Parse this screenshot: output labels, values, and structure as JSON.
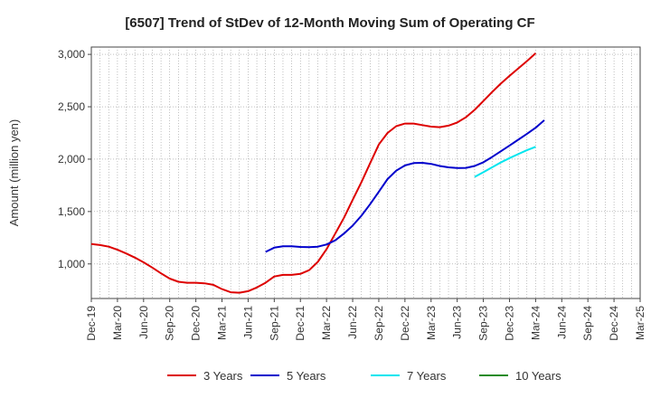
{
  "chart_data": {
    "type": "line",
    "title": "[6507]  Trend of StDev of 12-Month Moving Sum of Operating CF",
    "ylabel": "Amount (million yen)",
    "xlabel": "",
    "ylim": [
      670,
      3070
    ],
    "yticks": [
      1000,
      1500,
      2000,
      2500,
      3000
    ],
    "ytick_labels": [
      "1,000",
      "1,500",
      "2,000",
      "2,500",
      "3,000"
    ],
    "x_start": "2019-12",
    "x_end": "2025-03",
    "xtick_labels": [
      "Dec-19",
      "Mar-20",
      "Jun-20",
      "Sep-20",
      "Dec-20",
      "Mar-21",
      "Jun-21",
      "Sep-21",
      "Dec-21",
      "Mar-22",
      "Jun-22",
      "Sep-22",
      "Dec-22",
      "Mar-23",
      "Jun-23",
      "Sep-23",
      "Dec-23",
      "Mar-24",
      "Jun-24",
      "Sep-24",
      "Dec-24",
      "Mar-25"
    ],
    "grid": true,
    "legend_position": "bottom",
    "series": [
      {
        "name": "3 Years",
        "color": "#dd0000",
        "start": "2019-12",
        "values": [
          1190,
          1180,
          1165,
          1135,
          1100,
          1060,
          1015,
          965,
          910,
          860,
          830,
          820,
          820,
          815,
          800,
          760,
          730,
          725,
          740,
          775,
          820,
          880,
          895,
          895,
          905,
          940,
          1020,
          1140,
          1290,
          1440,
          1610,
          1780,
          1960,
          2140,
          2250,
          2315,
          2340,
          2340,
          2325,
          2310,
          2305,
          2320,
          2350,
          2400,
          2470,
          2555,
          2640,
          2720,
          2795,
          2865,
          2935,
          3010
        ]
      },
      {
        "name": "5 Years",
        "color": "#0000cc",
        "start": "2021-08",
        "values": [
          1115,
          1155,
          1168,
          1168,
          1162,
          1160,
          1165,
          1185,
          1225,
          1290,
          1365,
          1460,
          1570,
          1690,
          1810,
          1890,
          1940,
          1962,
          1965,
          1955,
          1935,
          1922,
          1915,
          1917,
          1935,
          1970,
          2020,
          2075,
          2130,
          2185,
          2240,
          2300,
          2372
        ]
      },
      {
        "name": "7 Years",
        "color": "#00e5ee",
        "start": "2023-08",
        "values": [
          1830,
          1875,
          1922,
          1968,
          2010,
          2048,
          2085,
          2118
        ]
      },
      {
        "name": "10 Years",
        "color": "#228b22",
        "start": "2024-03",
        "values": []
      }
    ]
  }
}
